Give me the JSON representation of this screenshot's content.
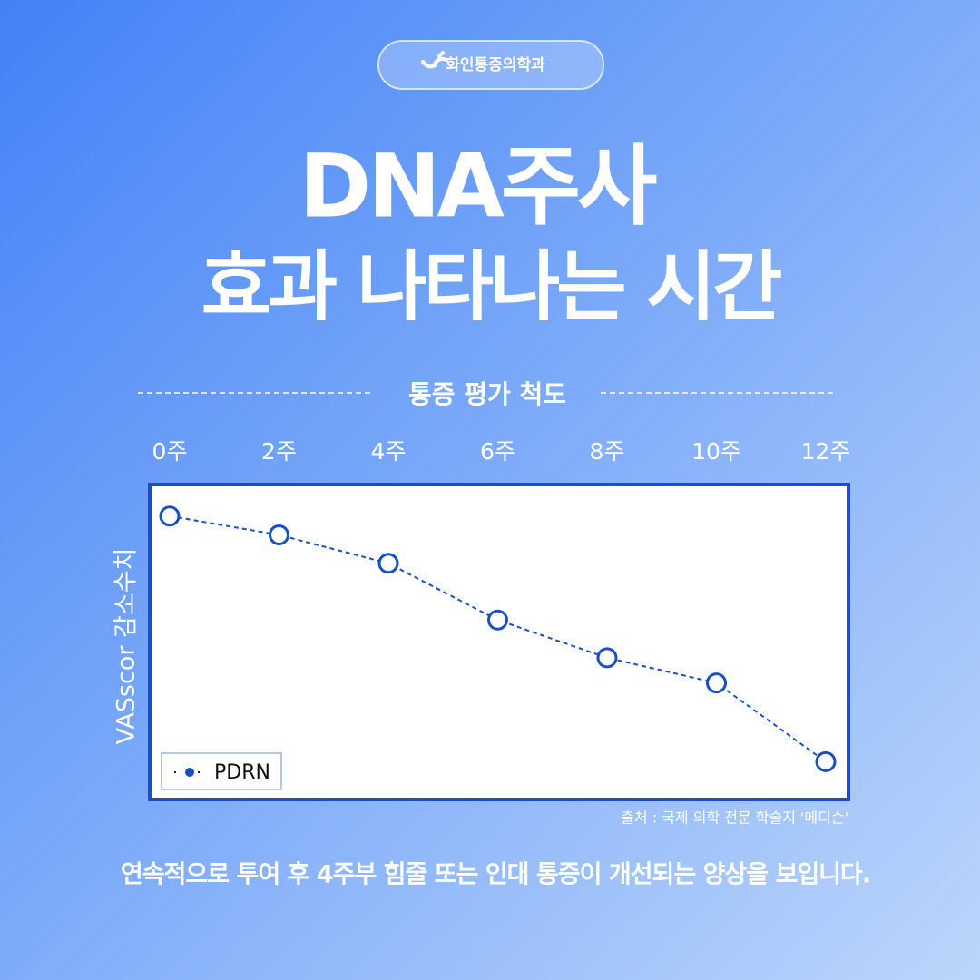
{
  "brand": "화인통증의학과",
  "headline": [
    "DNA주사",
    "효과 나타나는 시간"
  ],
  "caption": "연속적으로 투여 후 4주부  힘줄 또는 인대 통증이 개선되는 양상을 보입니다.",
  "chart_data": {
    "type": "line",
    "title": "통증 평가 척도",
    "y_label": "VASscor 감소수치",
    "source": "출처 : 국제 의학 전문 학술지 '메디슨'",
    "categories": [
      "0주",
      "2주",
      "4주",
      "6주",
      "8주",
      "10주",
      "12주"
    ],
    "series": [
      {
        "name": "PDRN",
        "color": "#1a4fc4",
        "values": [
          90,
          84,
          75,
          57,
          45,
          37,
          12
        ]
      }
    ],
    "ylim": [
      0,
      100
    ],
    "legend": "bottom-left"
  }
}
